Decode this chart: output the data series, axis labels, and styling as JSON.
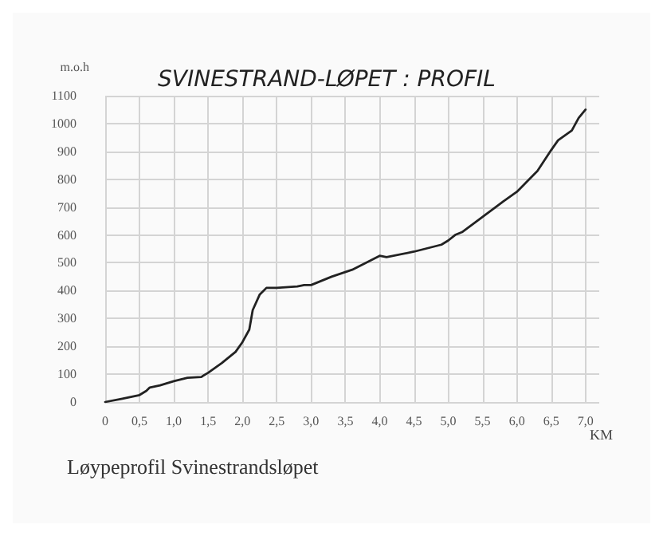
{
  "chart_data": {
    "type": "line",
    "title": "SVINESTRAND-LØPET : PROFIL",
    "ylabel": "m.o.h",
    "xlabel": "KM",
    "annotations": [
      "Løypeprofil Svinestrandsløpet"
    ],
    "series": [
      {
        "color": "#222222",
        "x": [
          0,
          0.25,
          0.5,
          0.6,
          0.65,
          0.8,
          1.0,
          1.2,
          1.4,
          1.5,
          1.7,
          1.9,
          2.0,
          2.1,
          2.15,
          2.25,
          2.35,
          2.5,
          2.8,
          2.9,
          3.0,
          3.3,
          3.6,
          3.8,
          4.0,
          4.1,
          4.5,
          4.9,
          5.0,
          5.1,
          5.2,
          5.5,
          5.8,
          6.0,
          6.3,
          6.5,
          6.6,
          6.8,
          6.9,
          7.0
        ],
        "values": [
          0,
          12,
          25,
          40,
          52,
          60,
          75,
          87,
          90,
          105,
          140,
          180,
          215,
          260,
          330,
          385,
          410,
          410,
          415,
          420,
          420,
          450,
          475,
          500,
          525,
          520,
          540,
          565,
          580,
          600,
          610,
          665,
          720,
          755,
          830,
          905,
          940,
          975,
          1020,
          1050
        ]
      }
    ],
    "xlim": [
      0,
      7.2
    ],
    "xticks": [
      0,
      {
        "value": 0.5,
        "label": "0,5"
      },
      {
        "value": 1,
        "label": "1,0"
      },
      {
        "value": 1.5,
        "label": "1,5"
      },
      {
        "value": 2,
        "label": "2,0"
      },
      {
        "value": 2.5,
        "label": "2,5"
      },
      {
        "value": 3,
        "label": "3,0"
      },
      {
        "value": 3.5,
        "label": "3,5"
      },
      {
        "value": 4,
        "label": "4,0"
      },
      {
        "value": 4.5,
        "label": "4,5"
      },
      {
        "value": 5,
        "label": "5,0"
      },
      {
        "value": 5.5,
        "label": "5,5"
      },
      {
        "value": 6,
        "label": "6,0"
      },
      {
        "value": 6.5,
        "label": "6,5"
      },
      {
        "value": 7,
        "label": "7,0"
      }
    ],
    "ylim": [
      0,
      1100
    ],
    "yticks": [
      0,
      100,
      200,
      300,
      400,
      500,
      600,
      700,
      800,
      900,
      1000,
      1100
    ],
    "grid": true,
    "marker": "none",
    "line_style": "solid"
  }
}
